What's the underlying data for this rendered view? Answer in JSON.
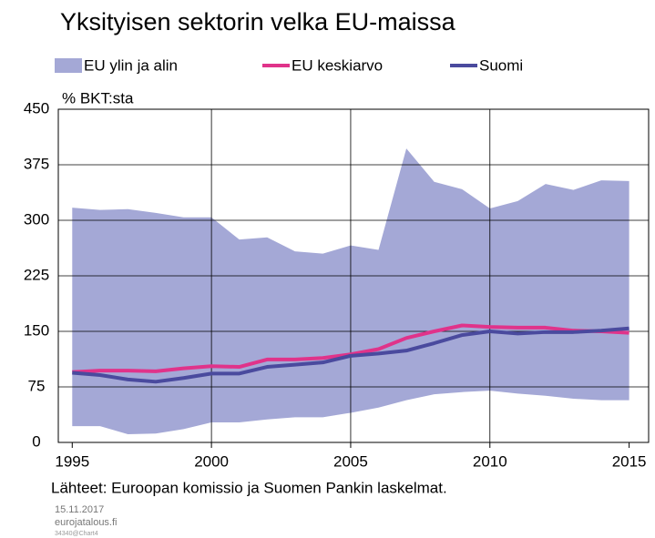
{
  "chart_data": {
    "type": "line",
    "title": "Yksityisen sektorin velka EU-maissa",
    "y_label": "% BKT:sta",
    "source": "Lähteet: Euroopan komissio ja Suomen Pankin laskelmat.",
    "footer": [
      "15.11.2017",
      "eurojatalous.fi",
      "34340@Chart4"
    ],
    "x": [
      1995,
      1996,
      1997,
      1998,
      1999,
      2000,
      2001,
      2002,
      2003,
      2004,
      2005,
      2006,
      2007,
      2008,
      2009,
      2010,
      2011,
      2012,
      2013,
      2014,
      2015
    ],
    "xlim": [
      1994.5,
      2015.7
    ],
    "xticks": [
      1995,
      2000,
      2005,
      2010,
      2015
    ],
    "ylim": [
      0,
      450
    ],
    "yticks": [
      0,
      75,
      150,
      225,
      300,
      375,
      450
    ],
    "grid": true,
    "band": {
      "name": "EU ylin ja alin",
      "color": "#a4a8d6",
      "upper": [
        317,
        314,
        315,
        310,
        304,
        304,
        274,
        277,
        258,
        255,
        266,
        260,
        397,
        352,
        342,
        316,
        326,
        349,
        341,
        354,
        353
      ],
      "lower": [
        22,
        22,
        11,
        12,
        18,
        27,
        27,
        31,
        34,
        34,
        40,
        47,
        57,
        65,
        68,
        70,
        66,
        63,
        59,
        57,
        57
      ]
    },
    "series": [
      {
        "name": "EU keskiarvo",
        "color": "#e0338a",
        "values": [
          95,
          97,
          97,
          96,
          100,
          103,
          102,
          112,
          112,
          114,
          119,
          126,
          141,
          150,
          158,
          156,
          155,
          155,
          151,
          150,
          148
        ]
      },
      {
        "name": "Suomi",
        "color": "#4a4a9e",
        "values": [
          94,
          91,
          85,
          82,
          87,
          93,
          93,
          102,
          105,
          108,
          117,
          120,
          124,
          134,
          145,
          150,
          147,
          149,
          149,
          151,
          154
        ]
      }
    ]
  }
}
